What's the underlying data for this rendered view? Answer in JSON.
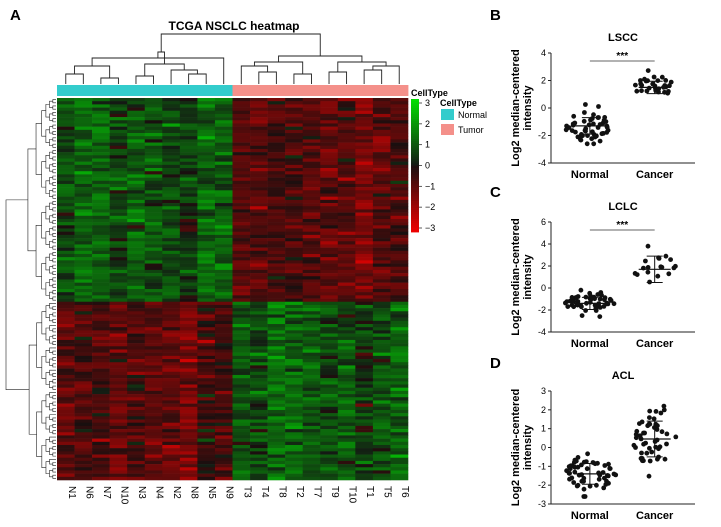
{
  "panels": {
    "A": {
      "letter": "A",
      "title": "TCGA NSCLC heatmap",
      "celltype_bar_label": "CellType",
      "legend_title": "CellType",
      "legend_items": [
        {
          "label": "Normal",
          "color": "#33cccc"
        },
        {
          "label": "Tumor",
          "color": "#f4908a"
        }
      ],
      "colorbar_ticks": [
        "3",
        "2",
        "1",
        "0",
        "−1",
        "−2",
        "−3"
      ],
      "sample_labels": [
        "N1",
        "N6",
        "N7",
        "N10",
        "N3",
        "N4",
        "N2",
        "N8",
        "N5",
        "N9",
        "T3",
        "T4",
        "T8",
        "T2",
        "T7",
        "T9",
        "T10",
        "T1",
        "T5",
        "T6"
      ],
      "colors": {
        "high": "#22dd22",
        "mid": "#000000",
        "low": "#ee1111"
      }
    },
    "B": {
      "letter": "B",
      "title": "LSCC",
      "ylabel": "Log2 median-centered intensity",
      "significance": "***",
      "categories": [
        "Normal",
        "Cancer"
      ],
      "yticks": [
        "4",
        "2",
        "0",
        "-2",
        "-4"
      ]
    },
    "C": {
      "letter": "C",
      "title": "LCLC",
      "ylabel": "Log2 median-centered intensity",
      "significance": "***",
      "categories": [
        "Normal",
        "Cancer"
      ],
      "yticks": [
        "6",
        "4",
        "2",
        "0",
        "-2",
        "-4"
      ]
    },
    "D": {
      "letter": "D",
      "title": "ACL",
      "ylabel": "Log2 median-centered intensity",
      "categories": [
        "Normal",
        "Cancer"
      ],
      "yticks": [
        "3",
        "2",
        "1",
        "0",
        "-1",
        "-2",
        "-3"
      ]
    }
  },
  "chart_data": [
    {
      "type": "heatmap",
      "title": "TCGA NSCLC heatmap",
      "columns": [
        "N1",
        "N6",
        "N7",
        "N10",
        "N3",
        "N4",
        "N2",
        "N8",
        "N5",
        "N9",
        "T3",
        "T4",
        "T8",
        "T2",
        "T7",
        "T9",
        "T10",
        "T1",
        "T5",
        "T6"
      ],
      "column_groups": [
        "Normal",
        "Normal",
        "Normal",
        "Normal",
        "Normal",
        "Normal",
        "Normal",
        "Normal",
        "Normal",
        "Normal",
        "Tumor",
        "Tumor",
        "Tumor",
        "Tumor",
        "Tumor",
        "Tumor",
        "Tumor",
        "Tumor",
        "Tumor",
        "Tumor"
      ],
      "color_scale": [
        -3,
        3
      ],
      "row_blocks": [
        {
          "rows_fraction": 0.53,
          "normal_mean": 1.0,
          "tumor_mean": -1.1
        },
        {
          "rows_fraction": 0.47,
          "normal_mean": -1.0,
          "tumor_mean": 1.0
        }
      ]
    },
    {
      "type": "scatter",
      "title": "LSCC",
      "categories": [
        "Normal",
        "Cancer"
      ],
      "ylabel": "Log2 median-centered intensity",
      "ylim": [
        -4,
        4
      ],
      "series": [
        {
          "name": "Normal",
          "mean": -1.3,
          "sd": 0.6,
          "n": 50,
          "range": [
            -2.6,
            0.4
          ]
        },
        {
          "name": "Cancer",
          "mean": 1.5,
          "sd": 0.45,
          "n": 30,
          "range": [
            0.6,
            3.0
          ]
        }
      ]
    },
    {
      "type": "scatter",
      "title": "LCLC",
      "categories": [
        "Normal",
        "Cancer"
      ],
      "ylabel": "Log2 median-centered intensity",
      "ylim": [
        -4,
        6
      ],
      "series": [
        {
          "name": "Normal",
          "mean": -1.4,
          "sd": 0.55,
          "n": 50,
          "range": [
            -2.6,
            0.4
          ]
        },
        {
          "name": "Cancer",
          "mean": 1.7,
          "sd": 1.2,
          "n": 18,
          "range": [
            -1.3,
            3.8
          ]
        }
      ]
    },
    {
      "type": "scatter",
      "title": "ACL",
      "categories": [
        "Normal",
        "Cancer"
      ],
      "ylabel": "Log2 median-centered intensity",
      "ylim": [
        -3,
        3
      ],
      "series": [
        {
          "name": "Normal",
          "mean": -1.4,
          "sd": 0.55,
          "n": 55,
          "range": [
            -2.6,
            0.4
          ]
        },
        {
          "name": "Cancer",
          "mean": 0.45,
          "sd": 0.95,
          "n": 50,
          "range": [
            -2.2,
            2.2
          ]
        }
      ]
    }
  ]
}
